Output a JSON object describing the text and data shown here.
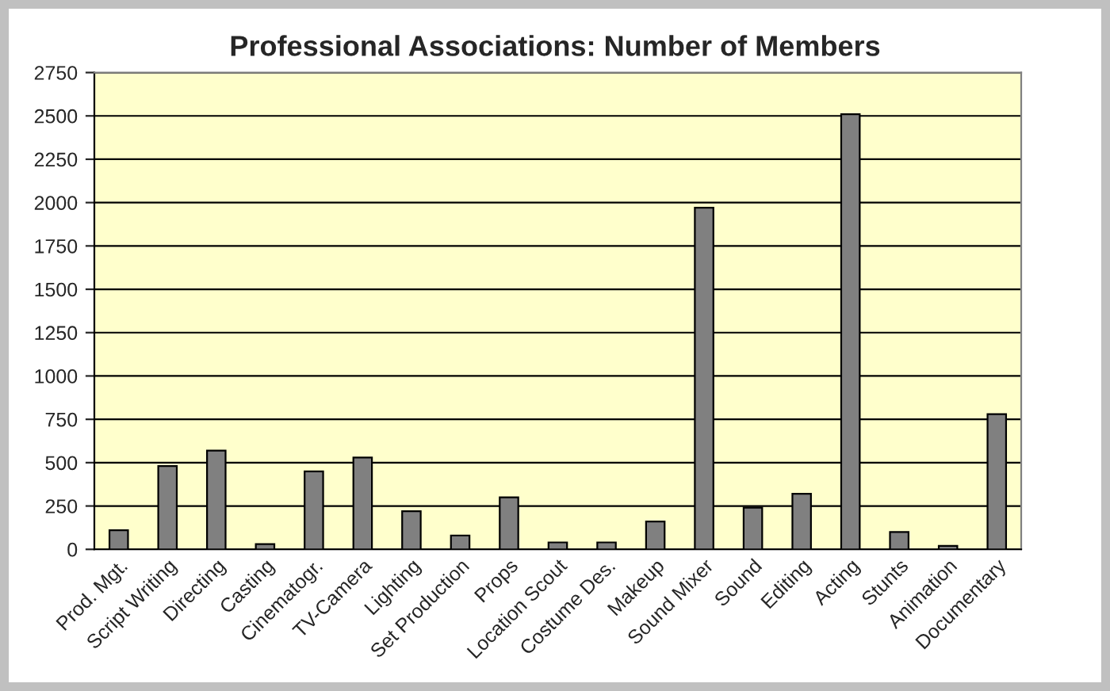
{
  "chart_data": {
    "type": "bar",
    "title": "Professional Associations: Number of Members",
    "categories": [
      "Prod. Mgt.",
      "Script Writing",
      "Directing",
      "Casting",
      "Cinematogr.",
      "TV-Camera",
      "Lighting",
      "Set Production",
      "Props",
      "Location Scout",
      "Costume Des.",
      "Makeup",
      "Sound Mixer",
      "Sound",
      "Editing",
      "Acting",
      "Stunts",
      "Animation",
      "Documentary"
    ],
    "values": [
      110,
      480,
      570,
      30,
      450,
      530,
      220,
      80,
      300,
      40,
      40,
      160,
      1970,
      240,
      320,
      2510,
      100,
      20,
      780
    ],
    "color": "#808080",
    "ylim": [
      0,
      2750
    ],
    "yticks": [
      0,
      250,
      500,
      750,
      1000,
      1250,
      1500,
      1750,
      2000,
      2250,
      2500,
      2750
    ],
    "grid": "y",
    "legend": false
  }
}
